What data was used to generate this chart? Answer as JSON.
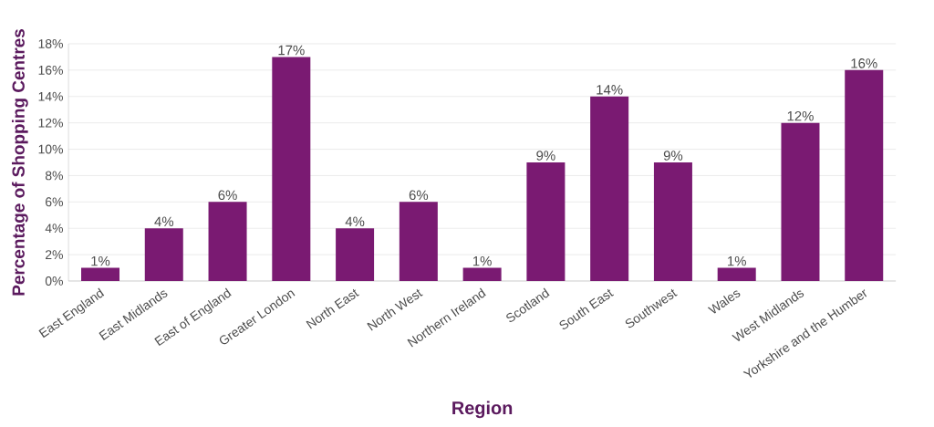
{
  "chart_data": {
    "type": "bar",
    "xlabel": "Region",
    "ylabel": "Percentage of Shopping Centres",
    "categories": [
      "East England",
      "East Midlands",
      "East of England",
      "Greater London",
      "North East",
      "North West",
      "Northern Ireland",
      "Scotland",
      "South East",
      "Southwest",
      "Wales",
      "West Midlands",
      "Yorkshire and the Humber"
    ],
    "values": [
      1,
      4,
      6,
      17,
      4,
      6,
      1,
      9,
      14,
      9,
      1,
      12,
      16
    ],
    "value_labels": [
      "1%",
      "4%",
      "6%",
      "17%",
      "4%",
      "6%",
      "1%",
      "9%",
      "14%",
      "9%",
      "1%",
      "12%",
      "16%"
    ],
    "color": "#7a1a72",
    "ylim": [
      0,
      18
    ],
    "yticks": [
      {
        "value": 0,
        "label": "0%"
      },
      {
        "value": 2,
        "label": "2%"
      },
      {
        "value": 4,
        "label": "4%"
      },
      {
        "value": 6,
        "label": "6%"
      },
      {
        "value": 8,
        "label": "8%"
      },
      {
        "value": 10,
        "label": "10%"
      },
      {
        "value": 12,
        "label": "12%"
      },
      {
        "value": 14,
        "label": "14%"
      },
      {
        "value": 16,
        "label": "16%"
      },
      {
        "value": 18,
        "label": "18%"
      }
    ],
    "grid": "y"
  }
}
